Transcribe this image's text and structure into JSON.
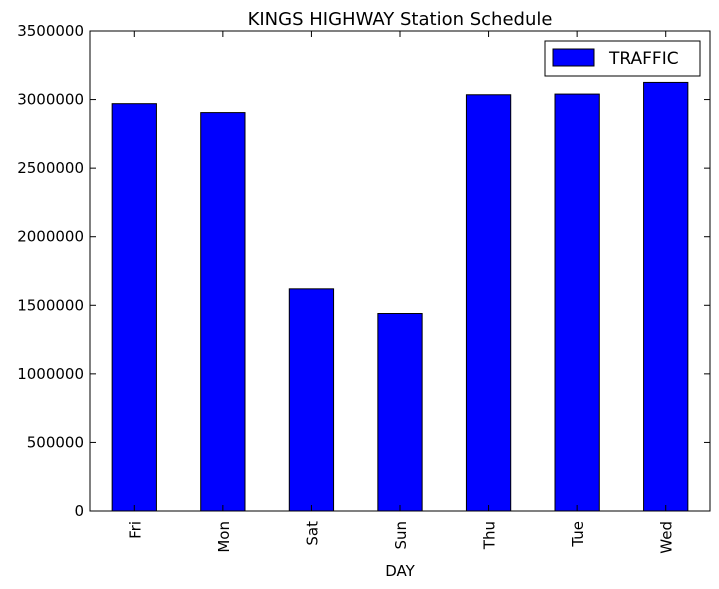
{
  "chart_data": {
    "type": "bar",
    "title": "KINGS HIGHWAY Station Schedule",
    "xlabel": "DAY",
    "ylabel": "",
    "categories": [
      "Fri",
      "Mon",
      "Sat",
      "Sun",
      "Thu",
      "Tue",
      "Wed"
    ],
    "series": [
      {
        "name": "TRAFFIC",
        "color": "#0000ff",
        "values": [
          2970000,
          2905000,
          1620000,
          1440000,
          3035000,
          3040000,
          3125000
        ]
      }
    ],
    "ylim": [
      0,
      3500000
    ],
    "yticks": [
      "0",
      "500000",
      "1000000",
      "1500000",
      "2000000",
      "2500000",
      "3000000",
      "3500000"
    ],
    "grid": false,
    "legend_position": "top-right"
  }
}
